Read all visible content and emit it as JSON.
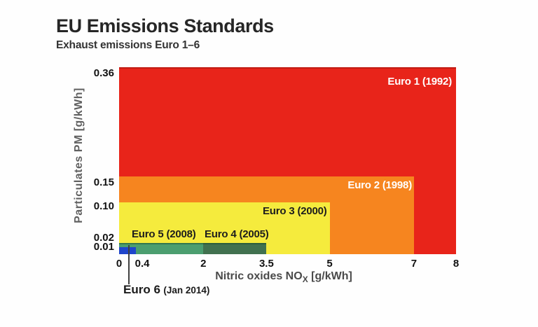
{
  "header": {
    "title": "EU Emissions Standards",
    "subtitle": "Exhaust emissions Euro 1–6"
  },
  "chart_data": {
    "type": "area",
    "title": "EU Emissions Standards",
    "subtitle": "Exhaust emissions Euro 1–6",
    "xlabel": "Nitric oxides NOx [g/kWh]",
    "xlabel_parts": {
      "prefix": "Nitric oxides NO",
      "sub": "X",
      "suffix": " [g/kWh]"
    },
    "ylabel": "Particulates PM [g/kWh]",
    "xlim": [
      0,
      8
    ],
    "ylim": [
      0,
      0.36
    ],
    "x_ticks": [
      "0",
      "0.4",
      "2",
      "3.5",
      "5",
      "7",
      "8"
    ],
    "y_ticks": [
      "0.36",
      "0.15",
      "0.10",
      "0.02",
      "0.01"
    ],
    "grid": false,
    "legend_position": "labels-inside-areas",
    "description": "Nested rectangles; each standard spans 0 to its NOx limit (x) and 0 to its PM limit (y)",
    "standards": [
      {
        "key": "euro1",
        "label": "Euro 1 (1992)",
        "nox_limit": 8,
        "pm_limit": 0.36,
        "color": "#e8241a",
        "label_color": "#ffffff"
      },
      {
        "key": "euro2",
        "label": "Euro 2 (1998)",
        "nox_limit": 7,
        "pm_limit": 0.15,
        "color": "#f6851f",
        "label_color": "#ffffff"
      },
      {
        "key": "euro3",
        "label": "Euro 3 (2000)",
        "nox_limit": 5,
        "pm_limit": 0.1,
        "color": "#f5eb3d",
        "label_color": "#1d1d1d"
      },
      {
        "key": "euro4",
        "label": "Euro 4 (2005)",
        "nox_limit": 3.5,
        "pm_limit": 0.02,
        "color": "#41714f",
        "label_color": "#1d1d1d"
      },
      {
        "key": "euro5",
        "label": "Euro 5 (2008)",
        "nox_limit": 2,
        "pm_limit": 0.02,
        "color": "#4b9e6f",
        "label_color": "#1d1d1d"
      },
      {
        "key": "euro6",
        "label": "Euro 6",
        "sub_label": "(Jan 2014)",
        "nox_limit": 0.4,
        "pm_limit": 0.01,
        "color": "#1f45cb",
        "label_color": "#1a1a1a"
      }
    ]
  }
}
